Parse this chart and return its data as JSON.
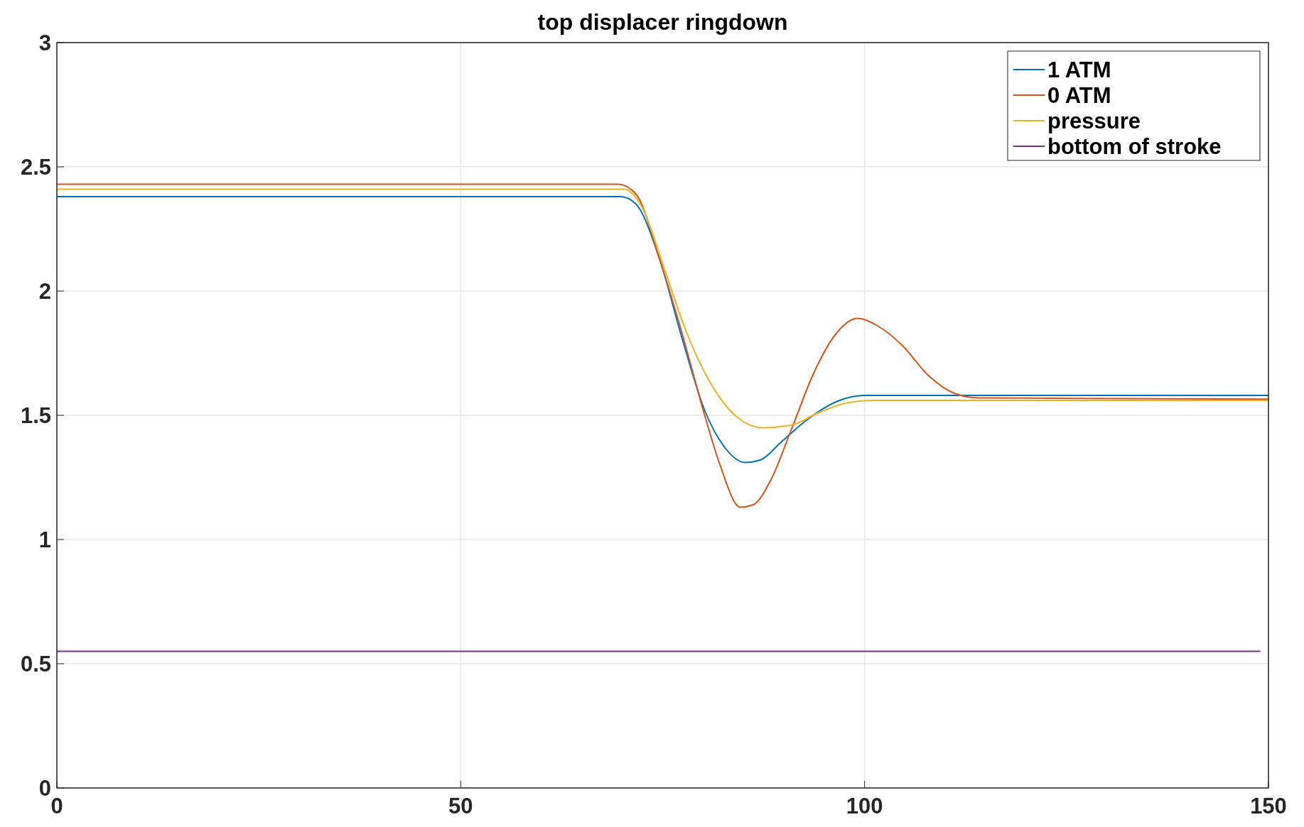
{
  "chart_data": {
    "type": "line",
    "title": "top displacer ringdown",
    "xlim": [
      0,
      150
    ],
    "xticks": [
      0,
      50,
      100,
      150
    ],
    "ylim": [
      0,
      3
    ],
    "yticks": [
      0,
      0.5,
      1,
      1.5,
      2,
      2.5,
      3
    ],
    "grid": true,
    "legend": "top right",
    "line_style": "solid",
    "series": [
      {
        "name": "1 ATM",
        "color": "#0072bd",
        "x": [
          0,
          69.8,
          71.7,
          74.6,
          77.4,
          80.2,
          82.7,
          85.2,
          87.1,
          89.6,
          92.8,
          96.9,
          100,
          150
        ],
        "values": [
          2.38,
          2.38,
          2.35,
          2.13,
          1.81,
          1.52,
          1.37,
          1.31,
          1.32,
          1.39,
          1.48,
          1.56,
          1.58,
          1.58
        ]
      },
      {
        "name": "0 ATM",
        "color": "#d95319",
        "x": [
          0,
          69.5,
          71.7,
          74.6,
          77.4,
          80.2,
          82.1,
          84.6,
          86.2,
          88.4,
          90.9,
          93.7,
          96.5,
          99.1,
          101.6,
          104.7,
          107.9,
          111.0,
          114.1,
          150
        ],
        "values": [
          2.43,
          2.43,
          2.39,
          2.13,
          1.83,
          1.5,
          1.3,
          1.13,
          1.14,
          1.24,
          1.44,
          1.67,
          1.83,
          1.89,
          1.86,
          1.78,
          1.66,
          1.59,
          1.57,
          1.565
        ]
      },
      {
        "name": "pressure",
        "color": "#edb120",
        "x": [
          0,
          70.2,
          72.4,
          75.2,
          78.0,
          81.1,
          84.3,
          87.4,
          90.9,
          94.3,
          97.8,
          100.9,
          150
        ],
        "values": [
          2.41,
          2.41,
          2.34,
          2.09,
          1.83,
          1.62,
          1.49,
          1.45,
          1.46,
          1.51,
          1.55,
          1.56,
          1.56
        ]
      },
      {
        "name": "bottom of stroke",
        "color": "#7e2f8e",
        "x": [
          0,
          149
        ],
        "values": [
          0.55,
          0.55
        ]
      }
    ]
  }
}
